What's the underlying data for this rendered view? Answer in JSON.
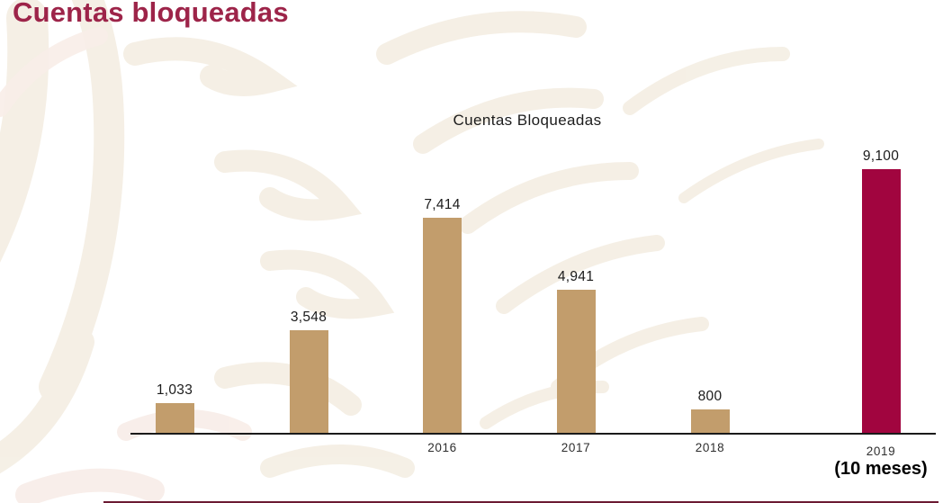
{
  "page": {
    "title": "Cuentas bloqueadas"
  },
  "chart": {
    "title": "Cuentas Bloqueadas",
    "bars": [
      {
        "value_label": "1,033",
        "year": "",
        "note": ""
      },
      {
        "value_label": "3,548",
        "year": "",
        "note": ""
      },
      {
        "value_label": "7,414",
        "year": "2016",
        "note": ""
      },
      {
        "value_label": "4,941",
        "year": "2017",
        "note": ""
      },
      {
        "value_label": "800",
        "year": "2018",
        "note": ""
      },
      {
        "value_label": "9,100",
        "year": "2019",
        "note": "(10 meses)"
      }
    ]
  },
  "chart_data": {
    "type": "bar",
    "categories": [
      "",
      "",
      "2016",
      "2017",
      "2018",
      "2019 (10 meses)"
    ],
    "values": [
      1033,
      3548,
      7414,
      4941,
      800,
      9100
    ],
    "title": "Cuentas Bloqueadas",
    "xlabel": "",
    "ylabel": "",
    "ylim": [
      0,
      9600
    ],
    "grid": false,
    "legend": false,
    "bar_color": "#C29D6C",
    "highlight_color": "#A1053F",
    "highlight_index": 5
  },
  "colors": {
    "page_title": "#9D2449",
    "axis": "#1a1a1a",
    "watermark_cream": "#F4EEE3",
    "watermark_blush": "#F8EDE8",
    "footer_accent": "#6B1A32",
    "background": "#FFFFFF"
  }
}
